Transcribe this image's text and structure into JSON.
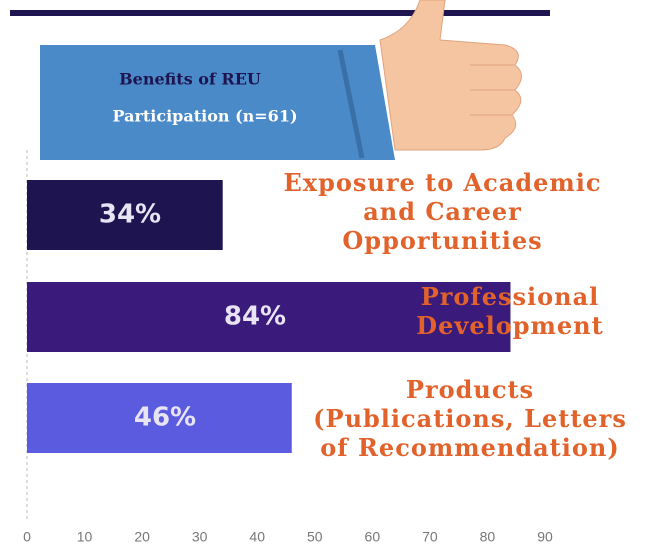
{
  "chart_data": {
    "type": "bar",
    "orientation": "horizontal",
    "title": "Benefits of REU",
    "subtitle": "Participation (n=61)",
    "categories": [
      "Exposure to Academic\nand Career\nOpportunities",
      "Professional\nDevelopment",
      "Products\n(Publications, Letters\nof Recommendation)"
    ],
    "values": [
      34,
      84,
      46
    ],
    "value_labels": [
      "34%",
      "84%",
      "46%"
    ],
    "colors": [
      "#1e1450",
      "#3a1a7a",
      "#5b5be0"
    ],
    "xlim": [
      0,
      90
    ],
    "xticks": [
      0,
      10,
      20,
      30,
      40,
      50,
      60,
      70,
      80,
      90
    ]
  }
}
